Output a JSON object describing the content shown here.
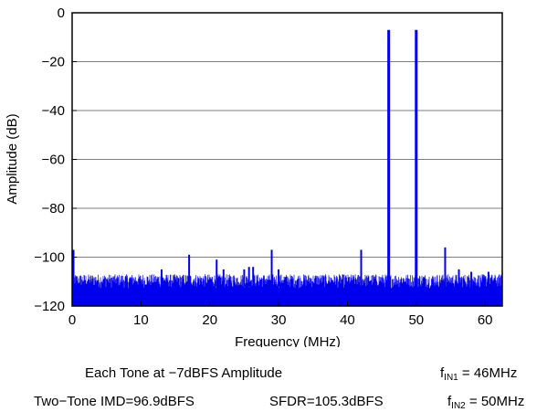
{
  "chart_data": {
    "type": "line",
    "title": "",
    "xlabel": "Frequency (MHz)",
    "ylabel": "Amplitude (dB)",
    "xlim": [
      0,
      62.5
    ],
    "ylim": [
      -120,
      0
    ],
    "xticks": [
      0,
      10,
      20,
      30,
      40,
      50,
      60
    ],
    "yticks": [
      0,
      -20,
      -40,
      -60,
      -80,
      -100,
      -120
    ],
    "tick_labels_x": [
      "0",
      "10",
      "20",
      "30",
      "40",
      "50",
      "60"
    ],
    "tick_labels_y": [
      "0",
      "−20",
      "−40",
      "−60",
      "−80",
      "−100",
      "−120"
    ],
    "grid": "horizontal",
    "series_color": "#0000ee",
    "noise_floor_range": [
      -120,
      -107
    ],
    "peaks": [
      {
        "x": 0.2,
        "y": -97
      },
      {
        "x": 13.0,
        "y": -105
      },
      {
        "x": 17.0,
        "y": -99
      },
      {
        "x": 21.0,
        "y": -101
      },
      {
        "x": 22.0,
        "y": -105
      },
      {
        "x": 25.0,
        "y": -105
      },
      {
        "x": 25.7,
        "y": -104
      },
      {
        "x": 26.3,
        "y": -104
      },
      {
        "x": 29.0,
        "y": -97
      },
      {
        "x": 30.0,
        "y": -105
      },
      {
        "x": 42.0,
        "y": -97
      },
      {
        "x": 46.0,
        "y": -7
      },
      {
        "x": 50.0,
        "y": -7
      },
      {
        "x": 54.2,
        "y": -96
      },
      {
        "x": 56.2,
        "y": -105
      },
      {
        "x": 58.0,
        "y": -106
      },
      {
        "x": 60.5,
        "y": -106
      }
    ]
  },
  "footer": {
    "tone_amplitude": "Each Tone at −7dBFS Amplitude",
    "imd": "Two−Tone IMD=96.9dBFS",
    "sfdr": "SFDR=105.3dBFS",
    "fin1_prefix": "f",
    "fin1_sub": "IN1",
    "fin1_value": " = 46MHz",
    "fin2_prefix": "f",
    "fin2_sub": "IN2",
    "fin2_value": " = 50MHz"
  }
}
